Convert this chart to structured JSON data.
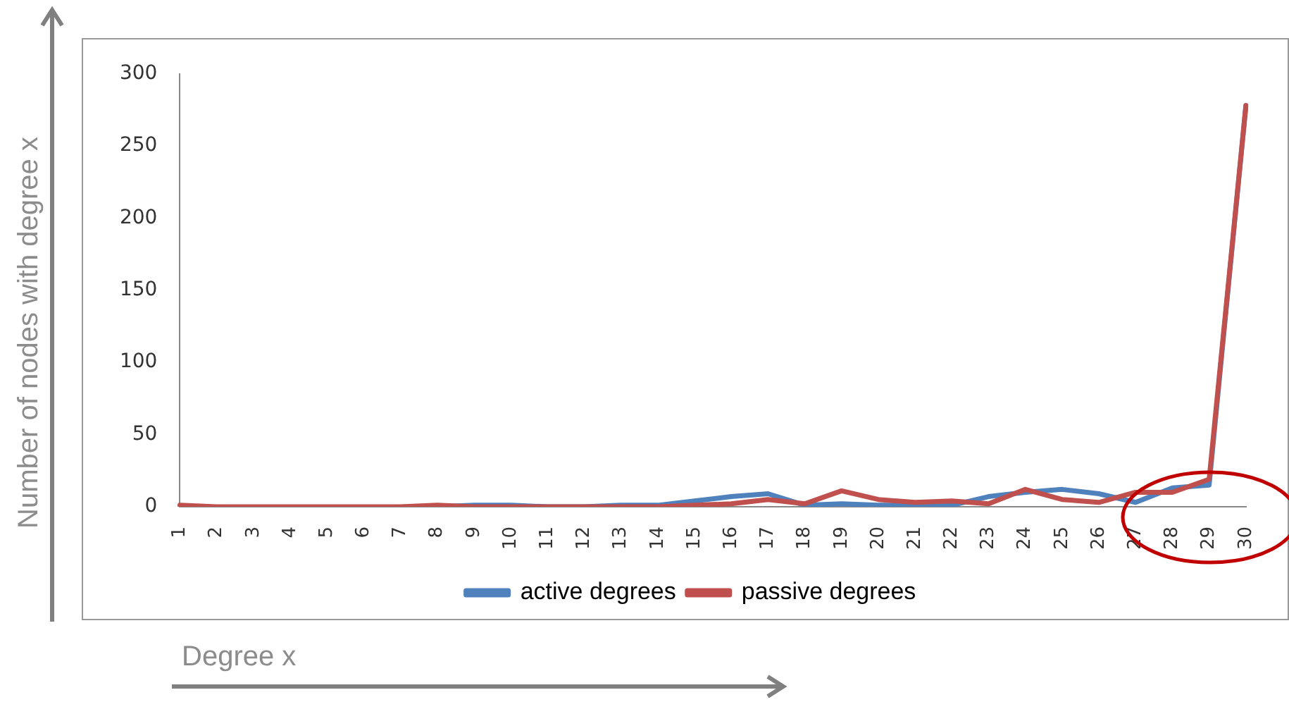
{
  "chart_data": {
    "type": "line",
    "xlabel": "Degree x",
    "ylabel": "Number of nodes with degree x",
    "categories": [
      "1",
      "2",
      "3",
      "4",
      "5",
      "6",
      "7",
      "8",
      "9",
      "10",
      "11",
      "12",
      "13",
      "14",
      "15",
      "16",
      "17",
      "18",
      "19",
      "20",
      "21",
      "22",
      "23",
      "24",
      "25",
      "26",
      "27",
      "28",
      "29",
      "30"
    ],
    "series": [
      {
        "name": "active degrees",
        "color": "#4f81bd",
        "values": [
          null,
          null,
          null,
          null,
          null,
          null,
          null,
          0,
          1,
          1,
          0,
          0,
          1,
          1,
          4,
          7,
          9,
          1,
          2,
          1,
          1,
          1,
          7,
          10,
          12,
          9,
          3,
          13,
          15,
          278
        ]
      },
      {
        "name": "passive degrees",
        "color": "#c0504d",
        "values": [
          1,
          0,
          0,
          0,
          0,
          0,
          0,
          1,
          0,
          0,
          0,
          0,
          0,
          0,
          1,
          2,
          5,
          2,
          11,
          5,
          3,
          4,
          2,
          12,
          5,
          3,
          10,
          10,
          19,
          278
        ]
      }
    ],
    "ylim": [
      0,
      300
    ],
    "yticks": [
      0,
      50,
      100,
      150,
      200,
      250,
      300
    ],
    "grid": false,
    "legend": "bottom",
    "marker": "none",
    "line_style": "solid"
  }
}
